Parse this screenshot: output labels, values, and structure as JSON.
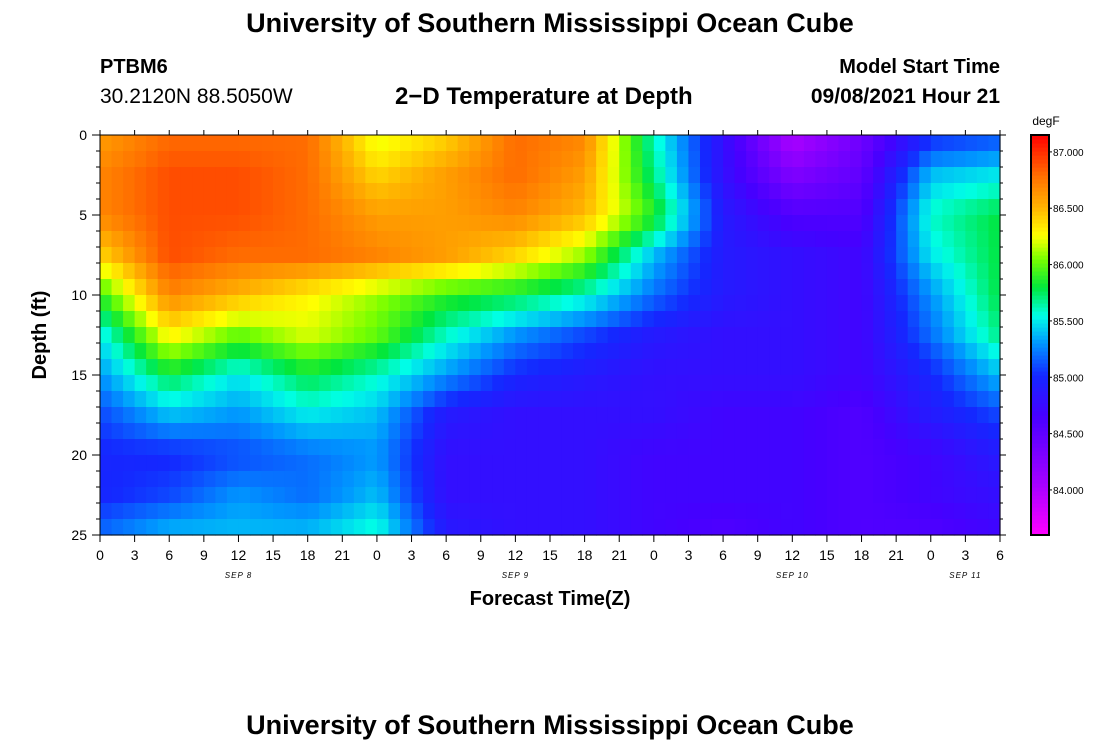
{
  "page": {
    "title_top": "University of Southern Mississippi Ocean Cube",
    "title_bottom": "University of Southern Mississippi Ocean Cube",
    "station_id": "PTBM6",
    "coordinates": "30.2120N  88.5050W",
    "subtitle": "2−D Temperature at Depth",
    "model_start_label": "Model Start Time",
    "model_start_value": "09/08/2021 Hour 21"
  },
  "chart_data": {
    "type": "heatmap",
    "title": "2−D Temperature at Depth",
    "xlabel": "Forecast Time(Z)",
    "ylabel": "Depth (ft)",
    "x_ticks": [
      "0",
      "3",
      "6",
      "9",
      "12",
      "15",
      "18",
      "21",
      "0",
      "3",
      "6",
      "9",
      "12",
      "15",
      "18",
      "21",
      "0",
      "3",
      "6",
      "9",
      "12",
      "15",
      "18",
      "21",
      "0",
      "3",
      "6"
    ],
    "x_day_labels": [
      {
        "label": "SEP 8",
        "tick_index": 4
      },
      {
        "label": "SEP 9",
        "tick_index": 12
      },
      {
        "label": "SEP 10",
        "tick_index": 20
      },
      {
        "label": "SEP 11",
        "tick_index": 25
      }
    ],
    "x_range_hours": [
      0,
      78
    ],
    "y_ticks": [
      0,
      5,
      10,
      15,
      20,
      25
    ],
    "ylim": [
      0,
      25
    ],
    "y_inverted": true,
    "colorbar": {
      "unit": "degF",
      "min": 83.6,
      "max": 87.15,
      "tick_values": [
        84.0,
        84.5,
        85.0,
        85.5,
        86.0,
        86.5,
        87.0
      ],
      "tick_labels": [
        "84.000",
        "84.500",
        "85.000",
        "85.500",
        "86.000",
        "86.500",
        "87.000"
      ]
    },
    "grid_x_hours": [
      0,
      6,
      12,
      18,
      24,
      30,
      36,
      42,
      48,
      54,
      60,
      66,
      72,
      78
    ],
    "grid_depths_ft": [
      0,
      2.5,
      5,
      7.5,
      10,
      12.5,
      15,
      17.5,
      20,
      22.5,
      25
    ],
    "values_degF": [
      [
        86.6,
        86.8,
        86.8,
        86.8,
        86.2,
        86.4,
        86.8,
        86.7,
        85.6,
        84.8,
        84.0,
        84.4,
        85.0,
        85.1
      ],
      [
        86.7,
        86.9,
        86.9,
        86.8,
        86.4,
        86.6,
        86.8,
        86.6,
        85.7,
        84.8,
        84.3,
        84.5,
        85.4,
        85.5
      ],
      [
        86.7,
        86.9,
        86.9,
        86.8,
        86.6,
        86.6,
        86.7,
        86.5,
        85.9,
        84.9,
        84.6,
        84.6,
        85.6,
        85.8
      ],
      [
        86.4,
        86.9,
        86.8,
        86.8,
        86.7,
        86.6,
        86.4,
        86.1,
        85.4,
        84.9,
        84.8,
        84.7,
        85.5,
        85.8
      ],
      [
        85.9,
        86.7,
        86.5,
        86.3,
        86.1,
        85.9,
        85.8,
        85.6,
        85.2,
        84.9,
        84.8,
        84.7,
        85.3,
        85.8
      ],
      [
        85.5,
        86.3,
        86.0,
        86.2,
        86.0,
        85.6,
        85.3,
        85.1,
        84.9,
        84.8,
        84.8,
        84.7,
        85.2,
        85.7
      ],
      [
        85.3,
        85.8,
        85.5,
        85.8,
        85.6,
        85.3,
        85.0,
        84.9,
        84.8,
        84.8,
        84.8,
        84.7,
        85.0,
        85.4
      ],
      [
        85.1,
        85.4,
        85.3,
        85.5,
        85.4,
        84.9,
        84.8,
        84.8,
        84.8,
        84.7,
        84.7,
        84.6,
        84.9,
        85.1
      ],
      [
        85.0,
        85.0,
        85.1,
        85.2,
        85.3,
        84.8,
        84.8,
        84.8,
        84.7,
        84.7,
        84.7,
        84.6,
        84.7,
        84.9
      ],
      [
        85.0,
        85.1,
        85.3,
        85.2,
        85.4,
        84.8,
        84.8,
        84.8,
        84.7,
        84.7,
        84.7,
        84.6,
        84.7,
        84.8
      ],
      [
        85.2,
        85.4,
        85.4,
        85.4,
        85.6,
        84.9,
        84.8,
        84.8,
        84.7,
        84.6,
        84.7,
        84.6,
        84.6,
        84.7
      ]
    ]
  }
}
